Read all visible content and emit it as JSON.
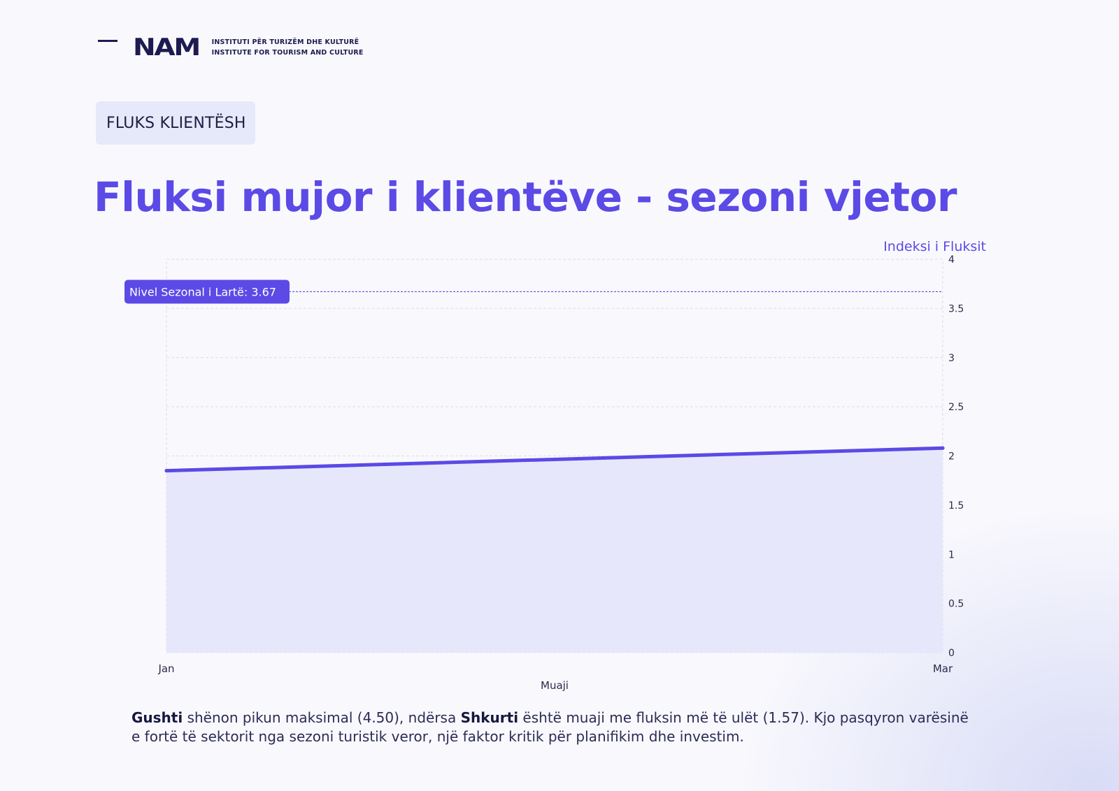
{
  "header": {
    "logo_mark": "NAM",
    "logo_line_1": "INSTITUTI PËR TURIZËM DHE KULTURË",
    "logo_line_2": "INSTITUTE FOR TOURISM AND CULTURE"
  },
  "badge": "FLUKS KLIENTËSH",
  "title": "Fluksi mujor i klientëve - sezoni vjetor",
  "caption": {
    "bold_1": "Gushti",
    "text_1": " shënon pikun maksimal (4.50), ndërsa ",
    "bold_2": "Shkurti",
    "text_2": " është muaji me fluksin më të ulët (1.57). Kjo pasqyron varësinë e fortë të sektorit nga sezoni turistik veror, një faktor kritik për planifikim dhe investim."
  },
  "colors": {
    "accent": "#5b4ae6",
    "area_fill": "#e6e7fb",
    "text_dark": "#1d1b4f",
    "badge_bg": "#e6e9fa"
  },
  "chart_data": {
    "type": "area",
    "categories": [
      "Jan",
      "Mar"
    ],
    "values": [
      1.85,
      2.08
    ],
    "xlabel": "Muaji",
    "ylabel": "Indeksi i Fluksit",
    "ylim": [
      0,
      4
    ],
    "yticks": [
      "0",
      "0.5",
      "1",
      "1.5",
      "2",
      "2.5",
      "3",
      "3.5",
      "4"
    ],
    "y_axis_position": "right",
    "grid": true,
    "reference_line": {
      "value": 3.67,
      "label": "Nivel Sezonal i Lartë: 3.67"
    }
  }
}
